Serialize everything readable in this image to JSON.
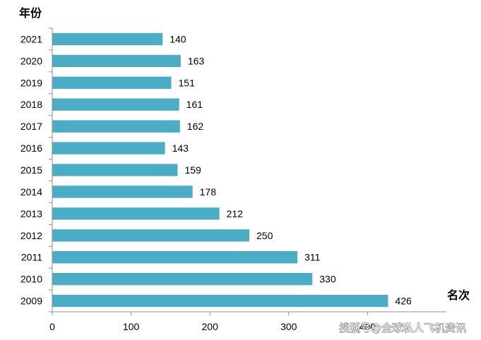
{
  "chart_data": {
    "type": "bar",
    "orientation": "horizontal",
    "categories": [
      "2021",
      "2020",
      "2019",
      "2018",
      "2017",
      "2016",
      "2015",
      "2014",
      "2013",
      "2012",
      "2011",
      "2010",
      "2009"
    ],
    "values": [
      140,
      163,
      151,
      161,
      162,
      143,
      159,
      178,
      212,
      250,
      311,
      330,
      426
    ],
    "data_labels": [
      "140",
      "163",
      "151",
      "161",
      "162",
      "143",
      "159",
      "178",
      "212",
      "250",
      "311",
      "330",
      "426"
    ],
    "ylabel": "年份",
    "xlabel": "名次",
    "xlim": [
      0,
      500
    ],
    "x_ticks": [
      "0",
      "100",
      "200",
      "300",
      "400"
    ],
    "x_tick_values": [
      0,
      100,
      200,
      300,
      400
    ],
    "grid": false,
    "legend": "none",
    "bar_color": "#4BACC6"
  },
  "watermark": "搜狐号@全球私人飞机资讯"
}
